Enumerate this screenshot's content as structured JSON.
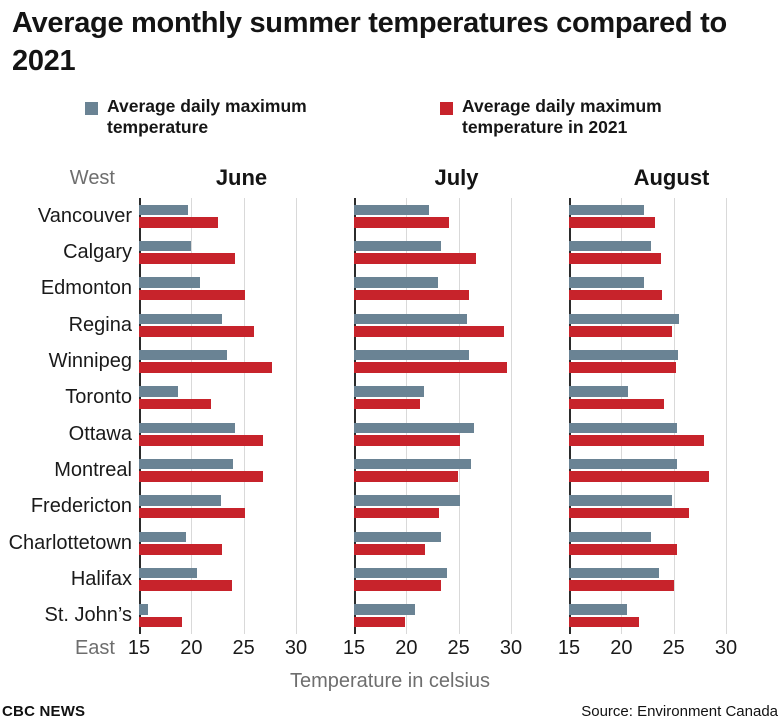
{
  "title": "Average monthly summer temperatures compared to 2021",
  "labels": {
    "west": "West",
    "east": "East"
  },
  "footer": {
    "left": "CBC NEWS",
    "right": "Source: Environment Canada"
  },
  "chart_data": {
    "type": "bar",
    "orientation": "horizontal",
    "title": "Average monthly summer temperatures compared to 2021",
    "xlabel": "Temperature in celsius",
    "xlim": [
      15,
      30
    ],
    "ticks": [
      15,
      20,
      25,
      30
    ],
    "grid": "vertical",
    "months": [
      "June",
      "July",
      "August"
    ],
    "categories": [
      "Vancouver",
      "Calgary",
      "Edmonton",
      "Regina",
      "Winnipeg",
      "Toronto",
      "Ottawa",
      "Montreal",
      "Fredericton",
      "Charlottetown",
      "Halifax",
      "St. John’s"
    ],
    "series": [
      {
        "name": "Average daily maximum temperature",
        "color": "#6a8394",
        "values": {
          "June": [
            19.7,
            20.0,
            20.8,
            22.9,
            23.4,
            18.7,
            24.2,
            24.0,
            22.8,
            19.5,
            20.5,
            15.9
          ],
          "July": [
            22.2,
            23.3,
            23.0,
            25.8,
            26.0,
            21.7,
            26.5,
            26.2,
            25.1,
            23.3,
            23.9,
            20.8
          ],
          "August": [
            22.2,
            22.8,
            22.2,
            25.5,
            25.4,
            20.6,
            25.3,
            25.3,
            24.8,
            22.8,
            23.6,
            20.5
          ]
        }
      },
      {
        "name": "Average daily maximum temperature in 2021",
        "color": "#c7232b",
        "values": {
          "June": [
            22.5,
            24.2,
            25.1,
            26.0,
            27.7,
            21.9,
            26.8,
            26.8,
            25.1,
            22.9,
            23.9,
            19.1
          ],
          "July": [
            24.1,
            26.7,
            26.0,
            29.3,
            29.6,
            21.3,
            25.1,
            24.9,
            23.1,
            21.8,
            23.3,
            19.9
          ],
          "August": [
            23.2,
            23.8,
            23.9,
            24.8,
            25.2,
            24.1,
            27.9,
            28.4,
            26.5,
            25.3,
            25.0,
            21.7
          ]
        }
      }
    ]
  }
}
